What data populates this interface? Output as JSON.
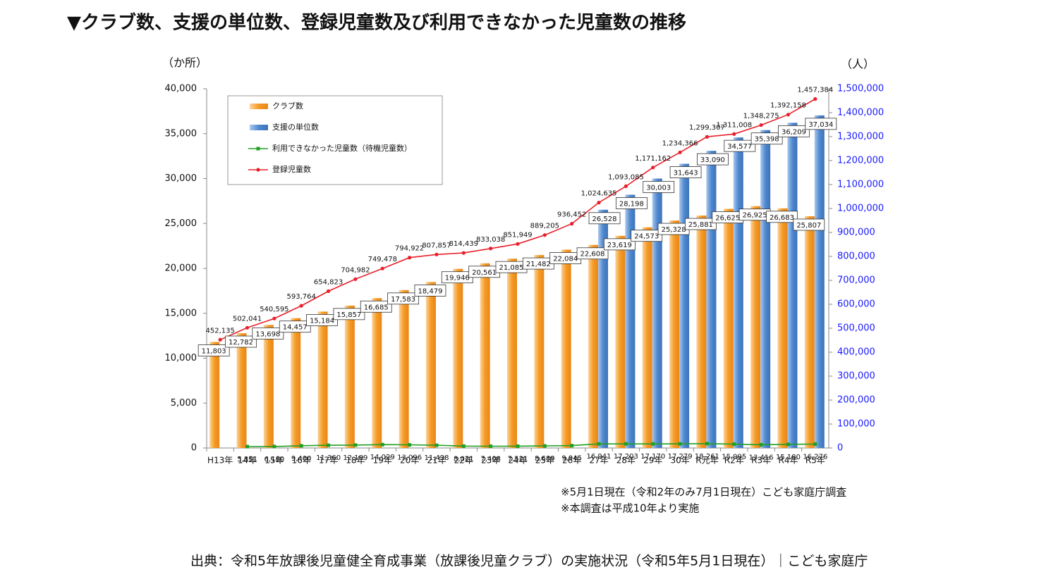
{
  "chart_data": {
    "type": "bar",
    "title": "▼クラブ数、支援の単位数、登録児童数及び利用できなかった児童数の推移",
    "y_label": "（か所）",
    "y2_label": "（人）",
    "notes": [
      "※5月1日現在（令和2年のみ7月1日現在）こども家庭庁調査",
      "※本調査は平成10年より実施"
    ],
    "source": "出典：令和5年放課後児童健全育成事業（放課後児童クラブ）の実施状況（令和5年5月1日現在）｜こども家庭庁",
    "categories": [
      "H13年",
      "14年",
      "15年",
      "16年",
      "17年",
      "18年",
      "19年",
      "20年",
      "21年",
      "22年",
      "23年",
      "24年",
      "25年",
      "26年",
      "27年",
      "28年",
      "29年",
      "30年",
      "R元年",
      "R2年",
      "R3年",
      "R4年",
      "R5年"
    ],
    "ylim": [
      0,
      40000
    ],
    "yticks": [
      0,
      {
        "value": 5000,
        "label": "5,000"
      },
      {
        "value": 10000,
        "label": "10,000"
      },
      {
        "value": 15000,
        "label": "15,000"
      },
      {
        "value": 20000,
        "label": "20,000"
      },
      {
        "value": 25000,
        "label": "25,000"
      },
      {
        "value": 30000,
        "label": "30,000"
      },
      {
        "value": 35000,
        "label": "35,000"
      },
      {
        "value": 40000,
        "label": "40,000"
      }
    ],
    "y2lim": [
      0,
      1500000
    ],
    "y2ticks": [
      0,
      {
        "value": 100000,
        "label": "100,000"
      },
      {
        "value": 200000,
        "label": "200,000"
      },
      {
        "value": 300000,
        "label": "300,000"
      },
      {
        "value": 400000,
        "label": "400,000"
      },
      {
        "value": 500000,
        "label": "500,000"
      },
      {
        "value": 600000,
        "label": "600,000"
      },
      {
        "value": 700000,
        "label": "700,000"
      },
      {
        "value": 800000,
        "label": "800,000"
      },
      {
        "value": 900000,
        "label": "900,000"
      },
      {
        "value": 1000000,
        "label": "1,000,000"
      },
      {
        "value": 1100000,
        "label": "1,100,000"
      },
      {
        "value": 1200000,
        "label": "1,200,000"
      },
      {
        "value": 1300000,
        "label": "1,300,000"
      },
      {
        "value": 1400000,
        "label": "1,400,000"
      },
      {
        "value": 1500000,
        "label": "1,500,000"
      }
    ],
    "y2_color": "#1a1aff",
    "series": [
      {
        "name": "クラブ数",
        "type": "bar",
        "color": "#f59a23",
        "values": [
          11803,
          12782,
          13698,
          14457,
          15184,
          15857,
          16685,
          17583,
          18479,
          19946,
          20561,
          21085,
          21482,
          22084,
          22608,
          23619,
          24573,
          25328,
          25881,
          26625,
          26925,
          26683,
          25807
        ],
        "value_labels": [
          "11,803",
          "12,782",
          "13,698",
          "14,457",
          "15,184",
          "15,857",
          "16,685",
          "17,583",
          "18,479",
          "19,946",
          "20,561",
          "21,085",
          "21,482",
          "22,084",
          "22,608",
          "23,619",
          "24,573",
          "25,328",
          "25,881",
          "26,625",
          "26,925",
          "26,683",
          "25,807"
        ]
      },
      {
        "name": "支援の単位数",
        "type": "bar",
        "color": "#4f89d0",
        "values": [
          null,
          null,
          null,
          null,
          null,
          null,
          null,
          null,
          null,
          null,
          null,
          null,
          null,
          null,
          26528,
          28198,
          30003,
          31643,
          33090,
          34577,
          35398,
          36209,
          37034
        ],
        "value_labels": [
          null,
          null,
          null,
          null,
          null,
          null,
          null,
          null,
          null,
          null,
          null,
          null,
          null,
          null,
          "26,528",
          "28,198",
          "30,003",
          "31,643",
          "33,090",
          "34,577",
          "35,398",
          "36,209",
          "37,034"
        ]
      },
      {
        "name": "利用できなかった児童数（待機児童数）",
        "type": "line",
        "axis": "y2",
        "color": "#22a022",
        "values": [
          null,
          5851,
          6180,
          9400,
          11360,
          12189,
          14029,
          13096,
          11438,
          8021,
          7408,
          7521,
          8689,
          9945,
          16941,
          17203,
          17170,
          17279,
          18261,
          15995,
          13416,
          15180,
          16276
        ],
        "value_labels": [
          null,
          "5,851",
          "6,180",
          "9,400",
          "11,360",
          "12,189",
          "14,029",
          "13,096",
          "11,438",
          "8,021",
          "7,408",
          "7,521",
          "8,689",
          "9,945",
          "16,941",
          "17,203",
          "17,170",
          "17,279",
          "18,261",
          "15,995",
          "13,416",
          "15,180",
          "16,276"
        ]
      },
      {
        "name": "登録児童数",
        "type": "line",
        "axis": "y2",
        "color": "#e8202a",
        "values": [
          452135,
          502041,
          540595,
          593764,
          654823,
          704982,
          749478,
          794922,
          807857,
          814439,
          833038,
          851949,
          889205,
          936452,
          1024635,
          1093085,
          1171162,
          1234366,
          1299307,
          1311008,
          1348275,
          1392158,
          1457384
        ],
        "value_labels": [
          "452,135",
          "502,041",
          "540,595",
          "593,764",
          "654,823",
          "704,982",
          "749,478",
          "794,922",
          "807,857",
          "814,439",
          "833,038",
          "851,949",
          "889,205",
          "936,452",
          "1,024,635",
          "1,093,085",
          "1,171,162",
          "1,234,366",
          "1,299,307",
          "1,311,008",
          "1,348,275",
          "1,392,158",
          "1,457,384"
        ]
      }
    ]
  }
}
